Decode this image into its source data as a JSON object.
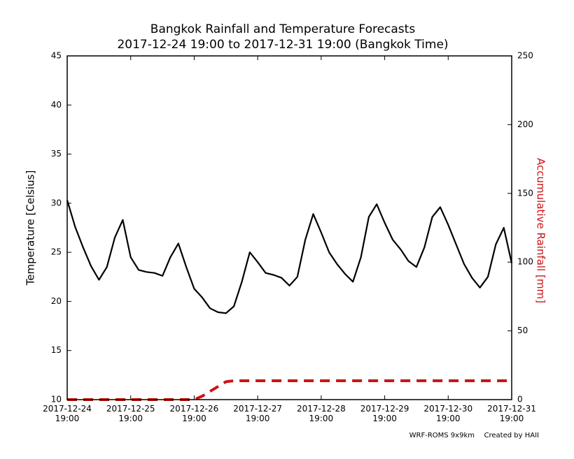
{
  "chart_data": {
    "type": "line",
    "title": "Bangkok Rainfall and Temperature Forecasts",
    "subtitle": "2017-12-24 19:00 to 2017-12-31 19:00 (Bangkok Time)",
    "y_label": "Temperature [Celsius]",
    "y2_label": "Accumulative Rainfall [mm]",
    "footnotes": [
      "WRF-ROMS 9x9km",
      "Created by HAII"
    ],
    "x": [
      "2017-12-24 19:00",
      "2017-12-24 22:00",
      "2017-12-25 01:00",
      "2017-12-25 04:00",
      "2017-12-25 07:00",
      "2017-12-25 10:00",
      "2017-12-25 13:00",
      "2017-12-25 16:00",
      "2017-12-25 19:00",
      "2017-12-25 22:00",
      "2017-12-26 01:00",
      "2017-12-26 04:00",
      "2017-12-26 07:00",
      "2017-12-26 10:00",
      "2017-12-26 13:00",
      "2017-12-26 16:00",
      "2017-12-26 19:00",
      "2017-12-26 22:00",
      "2017-12-27 01:00",
      "2017-12-27 04:00",
      "2017-12-27 07:00",
      "2017-12-27 10:00",
      "2017-12-27 13:00",
      "2017-12-27 16:00",
      "2017-12-27 19:00",
      "2017-12-27 22:00",
      "2017-12-28 01:00",
      "2017-12-28 04:00",
      "2017-12-28 07:00",
      "2017-12-28 10:00",
      "2017-12-28 13:00",
      "2017-12-28 16:00",
      "2017-12-28 19:00",
      "2017-12-28 22:00",
      "2017-12-29 01:00",
      "2017-12-29 04:00",
      "2017-12-29 07:00",
      "2017-12-29 10:00",
      "2017-12-29 13:00",
      "2017-12-29 16:00",
      "2017-12-29 19:00",
      "2017-12-29 22:00",
      "2017-12-30 01:00",
      "2017-12-30 04:00",
      "2017-12-30 07:00",
      "2017-12-30 10:00",
      "2017-12-30 13:00",
      "2017-12-30 16:00",
      "2017-12-30 19:00",
      "2017-12-30 22:00",
      "2017-12-31 01:00",
      "2017-12-31 04:00",
      "2017-12-31 07:00",
      "2017-12-31 10:00",
      "2017-12-31 13:00",
      "2017-12-31 16:00",
      "2017-12-31 19:00"
    ],
    "series": [
      {
        "name": "Temperature",
        "color": "#000000",
        "axis": "y",
        "values": [
          30.3,
          27.6,
          25.5,
          23.6,
          22.2,
          23.5,
          26.5,
          28.3,
          24.5,
          23.2,
          23.0,
          22.9,
          22.6,
          24.5,
          25.9,
          23.5,
          21.3,
          20.4,
          19.3,
          18.9,
          18.8,
          19.5,
          22.0,
          25.0,
          24.0,
          22.9,
          22.7,
          22.4,
          21.6,
          22.5,
          26.3,
          28.9,
          27.0,
          25.0,
          23.8,
          22.8,
          22.0,
          24.5,
          28.6,
          29.9,
          28.0,
          26.3,
          25.3,
          24.1,
          23.5,
          25.5,
          28.6,
          29.6,
          27.8,
          25.8,
          23.8,
          22.4,
          21.4,
          22.5,
          25.8,
          27.5,
          23.9
        ]
      },
      {
        "name": "Accumulative Rainfall",
        "color": "#cc1414",
        "axis": "y2",
        "dashed": true,
        "values": [
          0,
          0,
          0,
          0,
          0,
          0,
          0,
          0,
          0,
          0,
          0,
          0,
          0,
          0,
          0,
          0,
          0,
          2.5,
          6,
          9.5,
          13,
          13.7,
          13.7,
          13.7,
          13.7,
          13.7,
          13.7,
          13.7,
          13.7,
          13.7,
          13.7,
          13.7,
          13.7,
          13.7,
          13.7,
          13.7,
          13.7,
          13.7,
          13.7,
          13.7,
          13.7,
          13.7,
          13.7,
          13.7,
          13.7,
          13.7,
          13.7,
          13.7,
          13.7,
          13.7,
          13.7,
          13.7,
          13.7,
          13.7,
          13.7,
          13.7,
          13.7
        ]
      }
    ],
    "xlim": [
      "2017-12-24 19:00",
      "2017-12-31 19:00"
    ],
    "xticks": [
      {
        "value": "2017-12-24 19:00",
        "label": "2017-12-24\n19:00"
      },
      {
        "value": "2017-12-25 19:00",
        "label": "2017-12-25\n19:00"
      },
      {
        "value": "2017-12-26 19:00",
        "label": "2017-12-26\n19:00"
      },
      {
        "value": "2017-12-27 19:00",
        "label": "2017-12-27\n19:00"
      },
      {
        "value": "2017-12-28 19:00",
        "label": "2017-12-28\n19:00"
      },
      {
        "value": "2017-12-29 19:00",
        "label": "2017-12-29\n19:00"
      },
      {
        "value": "2017-12-30 19:00",
        "label": "2017-12-30\n19:00"
      },
      {
        "value": "2017-12-31 19:00",
        "label": "2017-12-31\n19:00"
      }
    ],
    "ylim": [
      10,
      45
    ],
    "yticks": [
      10,
      15,
      20,
      25,
      30,
      35,
      40,
      45
    ],
    "y2lim": [
      0,
      250
    ],
    "y2ticks": [
      0,
      50,
      100,
      150,
      200,
      250
    ],
    "y2_color": "#cc1414",
    "grid": false
  }
}
